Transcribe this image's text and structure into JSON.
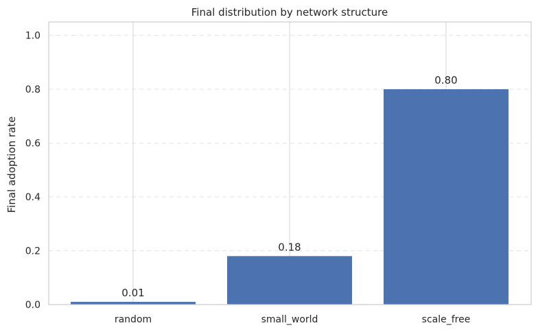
{
  "chart_data": {
    "type": "bar",
    "title": "Final distribution by network structure",
    "xlabel": "",
    "ylabel": "Final adoption rate",
    "categories": [
      "random",
      "small_world",
      "scale_free"
    ],
    "values": [
      0.01,
      0.18,
      0.8
    ],
    "data_labels": [
      "0.01",
      "0.18",
      "0.80"
    ],
    "ylim": [
      0,
      1.05
    ],
    "yticks": [
      0.0,
      0.2,
      0.4,
      0.6,
      0.8,
      1.0
    ],
    "ytick_labels": [
      "0.0",
      "0.2",
      "0.4",
      "0.6",
      "0.8",
      "1.0"
    ],
    "grid": true,
    "bar_color": "#4c72b0"
  }
}
